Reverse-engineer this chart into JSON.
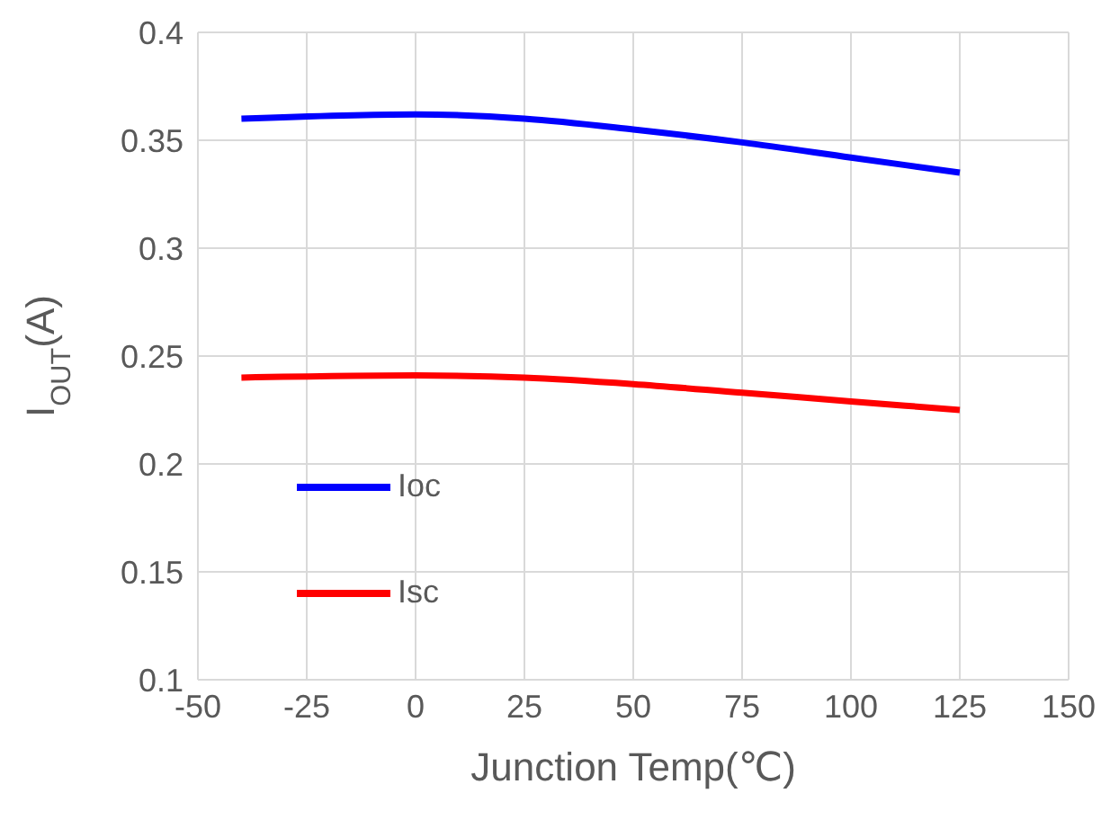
{
  "chart_data": {
    "type": "line",
    "xlabel": "Junction Temp(℃)",
    "ylabel": "I$_{OUT}$(A)",
    "x": [
      -40,
      0,
      25,
      50,
      75,
      100,
      125
    ],
    "series": [
      {
        "name": "Ioc",
        "color": "#0000ff",
        "values": [
          0.36,
          0.362,
          0.36,
          0.355,
          0.349,
          0.342,
          0.335
        ]
      },
      {
        "name": "Isc",
        "color": "#ff0000",
        "values": [
          0.24,
          0.241,
          0.24,
          0.237,
          0.233,
          0.229,
          0.225
        ]
      }
    ],
    "xlim": [
      -50,
      150
    ],
    "xticks": [
      -50,
      -25,
      0,
      25,
      50,
      75,
      100,
      125,
      150
    ],
    "ylim": [
      0.1,
      0.4
    ],
    "yticks": [
      0.1,
      0.15,
      0.2,
      0.25,
      0.3,
      0.35,
      0.4
    ],
    "grid": true,
    "legend": "left",
    "marker": "none",
    "line_style": "solid"
  }
}
